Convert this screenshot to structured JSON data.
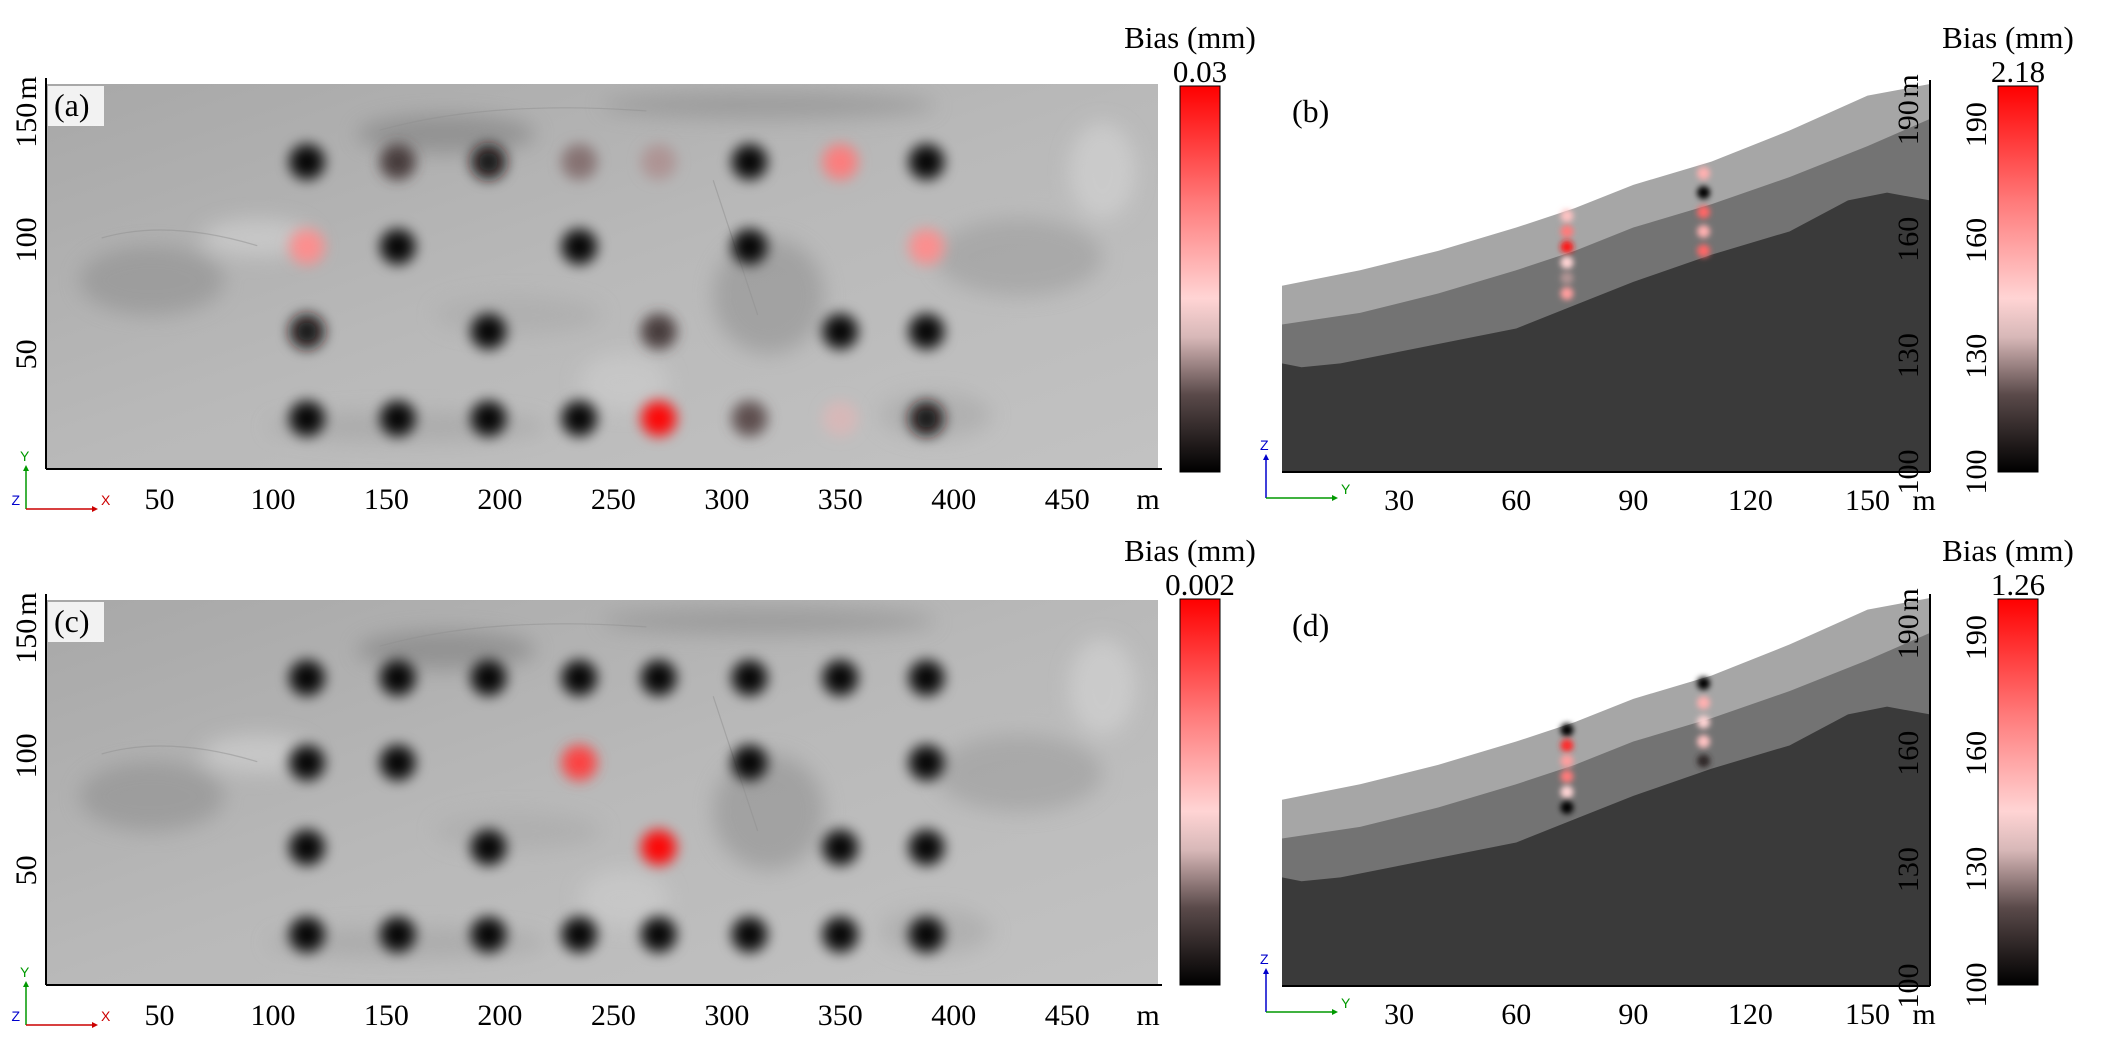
{
  "chart_data": [
    {
      "id": "a",
      "panel_label": "(a)",
      "type": "map_plan_view",
      "x_unit": "m",
      "y_unit": "m",
      "x_ticks": [
        50,
        100,
        150,
        200,
        250,
        300,
        350,
        400,
        450
      ],
      "y_ticks": [
        50,
        100,
        150
      ],
      "xlim": [
        0,
        490
      ],
      "ylim": [
        0,
        168
      ],
      "colorbar": {
        "title": "Bias (mm)",
        "max_label": "0.03"
      },
      "triad": {
        "horizontal": "X",
        "vertical": "Y",
        "out_of_plane": "Z"
      },
      "points": [
        {
          "x": 115,
          "y": 134,
          "v": 0.0
        },
        {
          "x": 155,
          "y": 134,
          "v": 0.15
        },
        {
          "x": 195,
          "y": 134,
          "v": 0.05
        },
        {
          "x": 235,
          "y": 134,
          "v": 0.25
        },
        {
          "x": 270,
          "y": 134,
          "v": 0.3
        },
        {
          "x": 310,
          "y": 134,
          "v": 0.0
        },
        {
          "x": 350,
          "y": 134,
          "v": 0.7
        },
        {
          "x": 388,
          "y": 134,
          "v": 0.0
        },
        {
          "x": 115,
          "y": 97,
          "v": 0.65
        },
        {
          "x": 155,
          "y": 97,
          "v": 0.0
        },
        {
          "x": 235,
          "y": 97,
          "v": 0.0
        },
        {
          "x": 310,
          "y": 97,
          "v": 0.0
        },
        {
          "x": 388,
          "y": 97,
          "v": 0.65
        },
        {
          "x": 115,
          "y": 60,
          "v": 0.05
        },
        {
          "x": 195,
          "y": 60,
          "v": 0.0
        },
        {
          "x": 270,
          "y": 60,
          "v": 0.15
        },
        {
          "x": 350,
          "y": 60,
          "v": 0.0
        },
        {
          "x": 388,
          "y": 60,
          "v": 0.0
        },
        {
          "x": 115,
          "y": 22,
          "v": 0.0
        },
        {
          "x": 155,
          "y": 22,
          "v": 0.0
        },
        {
          "x": 195,
          "y": 22,
          "v": 0.0
        },
        {
          "x": 235,
          "y": 22,
          "v": 0.0
        },
        {
          "x": 270,
          "y": 22,
          "v": 1.0
        },
        {
          "x": 310,
          "y": 22,
          "v": 0.2
        },
        {
          "x": 350,
          "y": 22,
          "v": 0.35
        },
        {
          "x": 388,
          "y": 22,
          "v": 0.05
        }
      ]
    },
    {
      "id": "b",
      "panel_label": "(b)",
      "type": "cross_section",
      "x_unit": "m",
      "y_unit": "m",
      "x_ticks": [
        30,
        60,
        90,
        120,
        150
      ],
      "y_ticks": [
        100,
        130,
        160,
        190
      ],
      "xlim": [
        0,
        166
      ],
      "ylim": [
        100,
        200
      ],
      "colorbar": {
        "title": "Bias (mm)",
        "max_label": "2.18",
        "ticks": [
          100,
          130,
          160,
          190
        ]
      },
      "triad": {
        "horizontal": "Y",
        "vertical": "Z"
      },
      "layers": {
        "surface": [
          [
            0,
            148
          ],
          [
            20,
            152
          ],
          [
            40,
            157
          ],
          [
            60,
            163
          ],
          [
            75,
            168
          ],
          [
            90,
            174
          ],
          [
            110,
            180
          ],
          [
            130,
            188
          ],
          [
            150,
            197
          ],
          [
            166,
            200
          ]
        ],
        "boundary_upper": [
          [
            0,
            138
          ],
          [
            20,
            141
          ],
          [
            40,
            146
          ],
          [
            60,
            152
          ],
          [
            75,
            157
          ],
          [
            90,
            163
          ],
          [
            110,
            169
          ],
          [
            130,
            176
          ],
          [
            150,
            184
          ],
          [
            166,
            191
          ]
        ],
        "boundary_lower": [
          [
            0,
            128
          ],
          [
            5,
            127
          ],
          [
            15,
            128
          ],
          [
            30,
            131
          ],
          [
            50,
            135
          ],
          [
            60,
            137
          ],
          [
            75,
            143
          ],
          [
            90,
            149
          ],
          [
            110,
            156
          ],
          [
            130,
            162
          ],
          [
            145,
            170
          ],
          [
            155,
            172
          ],
          [
            166,
            170
          ]
        ]
      },
      "points": [
        {
          "x": 73,
          "y": 166,
          "v": 0.5
        },
        {
          "x": 73,
          "y": 162,
          "v": 0.7
        },
        {
          "x": 73,
          "y": 158,
          "v": 0.95
        },
        {
          "x": 73,
          "y": 154,
          "v": 0.45
        },
        {
          "x": 73,
          "y": 150,
          "v": 0.3
        },
        {
          "x": 73,
          "y": 146,
          "v": 0.6
        },
        {
          "x": 108,
          "y": 177,
          "v": 0.55
        },
        {
          "x": 108,
          "y": 172,
          "v": 0.0
        },
        {
          "x": 108,
          "y": 167,
          "v": 0.75
        },
        {
          "x": 108,
          "y": 162,
          "v": 0.55
        },
        {
          "x": 108,
          "y": 157,
          "v": 0.75
        }
      ]
    },
    {
      "id": "c",
      "panel_label": "(c)",
      "type": "map_plan_view",
      "x_unit": "m",
      "y_unit": "m",
      "x_ticks": [
        50,
        100,
        150,
        200,
        250,
        300,
        350,
        400,
        450
      ],
      "y_ticks": [
        50,
        100,
        150
      ],
      "xlim": [
        0,
        490
      ],
      "ylim": [
        0,
        168
      ],
      "colorbar": {
        "title": "Bias (mm)",
        "max_label": "0.002"
      },
      "triad": {
        "horizontal": "X",
        "vertical": "Y",
        "out_of_plane": "Z"
      },
      "points": [
        {
          "x": 115,
          "y": 134,
          "v": 0.0
        },
        {
          "x": 155,
          "y": 134,
          "v": 0.0
        },
        {
          "x": 195,
          "y": 134,
          "v": 0.0
        },
        {
          "x": 235,
          "y": 134,
          "v": 0.0
        },
        {
          "x": 270,
          "y": 134,
          "v": 0.0
        },
        {
          "x": 310,
          "y": 134,
          "v": 0.0
        },
        {
          "x": 350,
          "y": 134,
          "v": 0.0
        },
        {
          "x": 388,
          "y": 134,
          "v": 0.0
        },
        {
          "x": 115,
          "y": 97,
          "v": 0.0
        },
        {
          "x": 155,
          "y": 97,
          "v": 0.0
        },
        {
          "x": 235,
          "y": 97,
          "v": 0.85
        },
        {
          "x": 310,
          "y": 97,
          "v": 0.0
        },
        {
          "x": 388,
          "y": 97,
          "v": 0.0
        },
        {
          "x": 115,
          "y": 60,
          "v": 0.0
        },
        {
          "x": 195,
          "y": 60,
          "v": 0.0
        },
        {
          "x": 270,
          "y": 60,
          "v": 1.0
        },
        {
          "x": 350,
          "y": 60,
          "v": 0.0
        },
        {
          "x": 388,
          "y": 60,
          "v": 0.0
        },
        {
          "x": 115,
          "y": 22,
          "v": 0.0
        },
        {
          "x": 155,
          "y": 22,
          "v": 0.0
        },
        {
          "x": 195,
          "y": 22,
          "v": 0.0
        },
        {
          "x": 235,
          "y": 22,
          "v": 0.0
        },
        {
          "x": 270,
          "y": 22,
          "v": 0.0
        },
        {
          "x": 310,
          "y": 22,
          "v": 0.0
        },
        {
          "x": 350,
          "y": 22,
          "v": 0.0
        },
        {
          "x": 388,
          "y": 22,
          "v": 0.0
        }
      ]
    },
    {
      "id": "d",
      "panel_label": "(d)",
      "type": "cross_section",
      "x_unit": "m",
      "y_unit": "m",
      "x_ticks": [
        30,
        60,
        90,
        120,
        150
      ],
      "y_ticks": [
        100,
        130,
        160,
        190
      ],
      "xlim": [
        0,
        166
      ],
      "ylim": [
        100,
        200
      ],
      "colorbar": {
        "title": "Bias (mm)",
        "max_label": "1.26",
        "ticks": [
          100,
          130,
          160,
          190
        ]
      },
      "triad": {
        "horizontal": "Y",
        "vertical": "Z"
      },
      "layers": {
        "surface": [
          [
            0,
            148
          ],
          [
            20,
            152
          ],
          [
            40,
            157
          ],
          [
            60,
            163
          ],
          [
            75,
            168
          ],
          [
            90,
            174
          ],
          [
            110,
            180
          ],
          [
            130,
            188
          ],
          [
            150,
            197
          ],
          [
            166,
            200
          ]
        ],
        "boundary_upper": [
          [
            0,
            138
          ],
          [
            20,
            141
          ],
          [
            40,
            146
          ],
          [
            60,
            152
          ],
          [
            75,
            157
          ],
          [
            90,
            163
          ],
          [
            110,
            169
          ],
          [
            130,
            176
          ],
          [
            150,
            184
          ],
          [
            166,
            191
          ]
        ],
        "boundary_lower": [
          [
            0,
            128
          ],
          [
            5,
            127
          ],
          [
            15,
            128
          ],
          [
            30,
            131
          ],
          [
            50,
            135
          ],
          [
            60,
            137
          ],
          [
            75,
            143
          ],
          [
            90,
            149
          ],
          [
            110,
            156
          ],
          [
            130,
            162
          ],
          [
            145,
            170
          ],
          [
            155,
            172
          ],
          [
            166,
            170
          ]
        ]
      },
      "points": [
        {
          "x": 73,
          "y": 166,
          "v": 0.0
        },
        {
          "x": 73,
          "y": 162,
          "v": 0.9
        },
        {
          "x": 73,
          "y": 158,
          "v": 0.6
        },
        {
          "x": 73,
          "y": 154,
          "v": 0.7
        },
        {
          "x": 73,
          "y": 150,
          "v": 0.45
        },
        {
          "x": 73,
          "y": 146,
          "v": 0.0
        },
        {
          "x": 108,
          "y": 178,
          "v": 0.0
        },
        {
          "x": 108,
          "y": 173,
          "v": 0.55
        },
        {
          "x": 108,
          "y": 168,
          "v": 0.45
        },
        {
          "x": 108,
          "y": 163,
          "v": 0.5
        },
        {
          "x": 108,
          "y": 158,
          "v": 0.1
        }
      ]
    }
  ],
  "colors": {
    "map_base": "#b4b4b4",
    "layer_top": "#a6a6a6",
    "layer_mid": "#737373",
    "layer_bottom": "#3a3a3a",
    "colormap": [
      "#000000",
      "#7a6a6a",
      "#ffd0d0",
      "#ff6060",
      "#ff0000"
    ],
    "axis_x_arrow": "#cc0000",
    "axis_y_arrow": "#009900",
    "axis_z_arrow": "#0000cc"
  }
}
